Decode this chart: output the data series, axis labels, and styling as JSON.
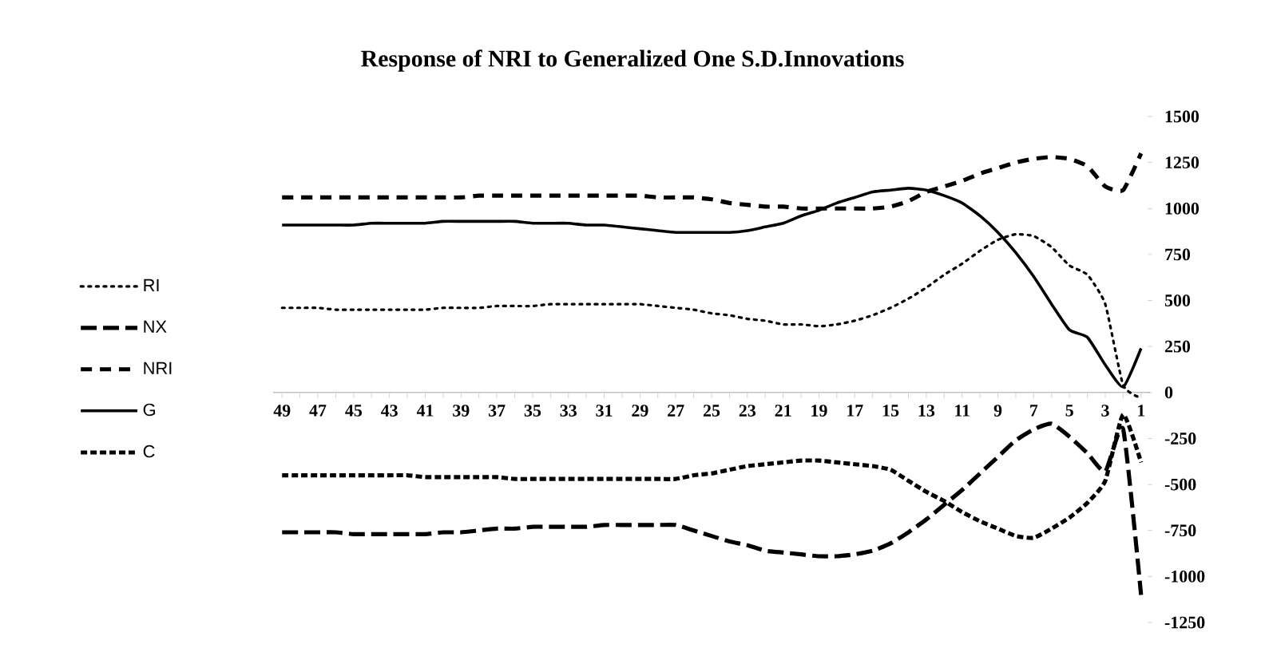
{
  "chart_data": {
    "type": "line",
    "title": "Response of NRI to Generalized One S.D.Innovations",
    "categories": [
      "49",
      null,
      "47",
      null,
      "45",
      null,
      "43",
      null,
      "41",
      null,
      "39",
      null,
      "37",
      null,
      "35",
      null,
      "33",
      null,
      "31",
      null,
      "29",
      null,
      "27",
      null,
      "25",
      null,
      "23",
      null,
      "21",
      null,
      "19",
      null,
      "17",
      null,
      "15",
      null,
      "13",
      null,
      "11",
      null,
      "9",
      null,
      "7",
      null,
      "5",
      null,
      "3",
      null,
      "1"
    ],
    "series": [
      {
        "name": "RI",
        "color": "#000000",
        "line_style": "dotted",
        "values": [
          460,
          460,
          460,
          450,
          450,
          450,
          450,
          450,
          450,
          460,
          460,
          460,
          470,
          470,
          470,
          480,
          480,
          480,
          480,
          480,
          480,
          470,
          460,
          450,
          430,
          420,
          400,
          390,
          370,
          370,
          360,
          370,
          390,
          420,
          460,
          510,
          570,
          640,
          700,
          770,
          830,
          860,
          850,
          790,
          690,
          640,
          480,
          40,
          -30
        ]
      },
      {
        "name": "NX",
        "color": "#000000",
        "line_style": "dashed",
        "values": [
          -760,
          -760,
          -760,
          -760,
          -770,
          -770,
          -770,
          -770,
          -770,
          -760,
          -760,
          -750,
          -740,
          -740,
          -730,
          -730,
          -730,
          -730,
          -720,
          -720,
          -720,
          -720,
          -720,
          -750,
          -780,
          -810,
          -830,
          -860,
          -870,
          -880,
          -890,
          -890,
          -880,
          -860,
          -820,
          -760,
          -690,
          -610,
          -530,
          -440,
          -350,
          -260,
          -200,
          -170,
          -240,
          -330,
          -430,
          -200,
          -1100
        ]
      },
      {
        "name": "NRI",
        "color": "#000000",
        "line_style": "dashed",
        "values": [
          1060,
          1060,
          1060,
          1060,
          1060,
          1060,
          1060,
          1060,
          1060,
          1060,
          1060,
          1070,
          1070,
          1070,
          1070,
          1070,
          1070,
          1070,
          1070,
          1070,
          1070,
          1060,
          1060,
          1060,
          1050,
          1030,
          1020,
          1010,
          1010,
          1000,
          1000,
          1000,
          1000,
          1000,
          1010,
          1040,
          1090,
          1120,
          1150,
          1190,
          1220,
          1250,
          1270,
          1280,
          1270,
          1230,
          1120,
          1100,
          1300
        ]
      },
      {
        "name": "G",
        "color": "#000000",
        "line_style": "solid",
        "values": [
          910,
          910,
          910,
          910,
          910,
          920,
          920,
          920,
          920,
          930,
          930,
          930,
          930,
          930,
          920,
          920,
          920,
          910,
          910,
          900,
          890,
          880,
          870,
          870,
          870,
          870,
          880,
          900,
          920,
          960,
          990,
          1030,
          1060,
          1090,
          1100,
          1110,
          1100,
          1070,
          1030,
          960,
          870,
          760,
          630,
          480,
          340,
          300,
          150,
          30,
          240
        ]
      },
      {
        "name": "C",
        "color": "#000000",
        "line_style": "dashed",
        "values": [
          -450,
          -450,
          -450,
          -450,
          -450,
          -450,
          -450,
          -450,
          -460,
          -460,
          -460,
          -460,
          -460,
          -470,
          -470,
          -470,
          -470,
          -470,
          -470,
          -470,
          -470,
          -470,
          -470,
          -450,
          -440,
          -420,
          -400,
          -390,
          -380,
          -370,
          -370,
          -380,
          -390,
          -400,
          -420,
          -480,
          -540,
          -590,
          -650,
          -700,
          -740,
          -780,
          -790,
          -740,
          -680,
          -600,
          -480,
          -120,
          -380
        ]
      }
    ],
    "ylim": [
      -1250,
      1500
    ],
    "yticks": [
      -1250,
      -1000,
      -750,
      -500,
      -250,
      0,
      250,
      500,
      750,
      1000,
      1250,
      1500
    ],
    "grid": false,
    "legend": "left"
  }
}
